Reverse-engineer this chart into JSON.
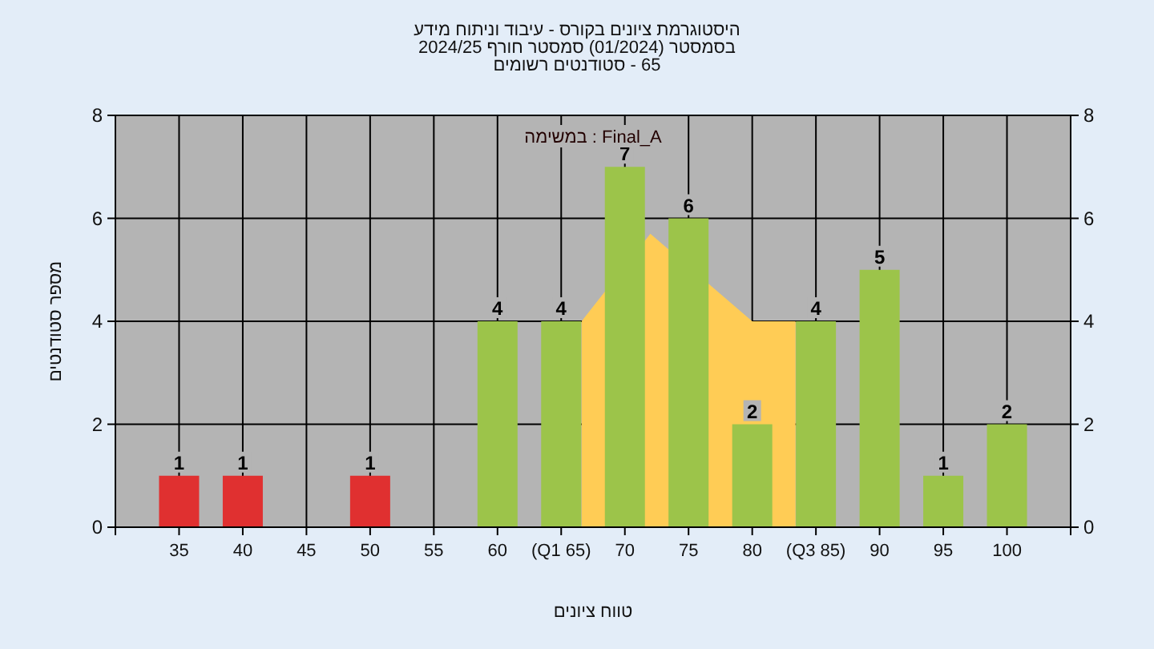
{
  "chart_data": {
    "type": "bar",
    "title": "היסטוגרמת ציונים בקורס - עיבוד וניתוח מידע",
    "subtitle": [
      "בסמסטר (01/2024) סמסטר חורף 2024/25",
      "65 - סטודנטים רשומים"
    ],
    "xlabel": "טווח ציונים",
    "ylabel": "מספר סטודנטים",
    "annotations": [
      "במשימה : Final_A"
    ],
    "x": [
      35,
      40,
      45,
      50,
      55,
      60,
      65,
      70,
      75,
      80,
      85,
      90,
      95,
      100
    ],
    "xlim": [
      30,
      105
    ],
    "xticks": [
      35,
      40,
      45,
      50,
      55,
      60,
      {
        "value": 65,
        "label": "(Q1 65)"
      },
      70,
      75,
      80,
      {
        "value": 85,
        "label": "(Q3 85)"
      },
      90,
      95,
      100
    ],
    "ylim": [
      0,
      8
    ],
    "yticks": [
      0,
      2,
      4,
      6,
      8
    ],
    "y2lim": [
      0,
      8
    ],
    "y2ticks": [
      0,
      2,
      4,
      6,
      8
    ],
    "grid": true,
    "series": [
      {
        "type": "area",
        "color": "#ffcc55",
        "x": [
          66.6,
          72,
          80,
          83.4
        ],
        "values": [
          4,
          5.7,
          4,
          4
        ]
      },
      {
        "colors": [
          "#e03030",
          "#e03030",
          "#e03030",
          "#e03030",
          "#e03030",
          "#9cc44a",
          "#9cc44a",
          "#9cc44a",
          "#9cc44a",
          "#9cc44a",
          "#9cc44a",
          "#9cc44a",
          "#9cc44a",
          "#9cc44a"
        ],
        "values": [
          1,
          1,
          0,
          1,
          0,
          4,
          4,
          7,
          6,
          2,
          4,
          5,
          1,
          2
        ],
        "value_labels": [
          "1",
          "1",
          null,
          "1",
          null,
          "4",
          "4",
          "7",
          "6",
          "2",
          "4",
          "5",
          "1",
          "2"
        ]
      }
    ]
  }
}
